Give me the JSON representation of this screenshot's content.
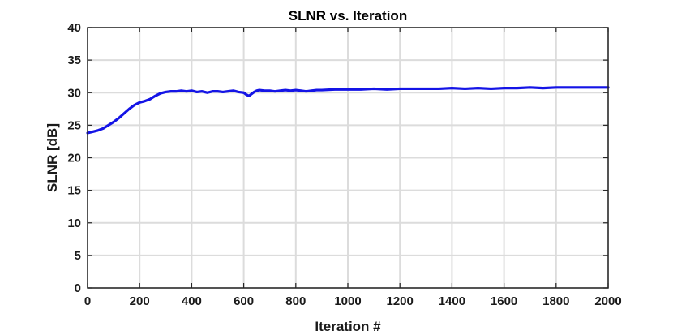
{
  "chart_data": {
    "type": "line",
    "title": "SLNR vs. Iteration",
    "xlabel": "Iteration #",
    "ylabel": "SLNR [dB]",
    "xlim": [
      0,
      2000
    ],
    "ylim": [
      0,
      40
    ],
    "xticks": [
      0,
      200,
      400,
      600,
      800,
      1000,
      1200,
      1400,
      1600,
      1800,
      2000
    ],
    "yticks": [
      0,
      5,
      10,
      15,
      20,
      25,
      30,
      35,
      40
    ],
    "grid": true,
    "colors": {
      "line": "#1414e6",
      "grid": "#dcdcdc",
      "axis": "#262626"
    },
    "series": [
      {
        "x": [
          0,
          20,
          40,
          60,
          80,
          100,
          120,
          140,
          160,
          180,
          200,
          220,
          240,
          260,
          280,
          300,
          320,
          340,
          360,
          380,
          400,
          420,
          440,
          460,
          480,
          500,
          520,
          540,
          560,
          580,
          600,
          610,
          620,
          630,
          640,
          650,
          660,
          680,
          700,
          720,
          740,
          760,
          780,
          800,
          820,
          840,
          860,
          880,
          900,
          950,
          1000,
          1050,
          1100,
          1150,
          1200,
          1250,
          1300,
          1350,
          1400,
          1450,
          1500,
          1550,
          1600,
          1650,
          1700,
          1750,
          1800,
          1850,
          1900,
          1950,
          2000
        ],
        "values": [
          23.8,
          24.0,
          24.2,
          24.5,
          25.0,
          25.5,
          26.1,
          26.8,
          27.5,
          28.1,
          28.5,
          28.7,
          29.0,
          29.5,
          29.9,
          30.1,
          30.2,
          30.2,
          30.3,
          30.2,
          30.3,
          30.1,
          30.2,
          30.0,
          30.2,
          30.2,
          30.1,
          30.2,
          30.3,
          30.1,
          30.0,
          29.7,
          29.5,
          29.8,
          30.1,
          30.3,
          30.4,
          30.3,
          30.3,
          30.2,
          30.3,
          30.4,
          30.3,
          30.4,
          30.3,
          30.2,
          30.3,
          30.4,
          30.4,
          30.5,
          30.5,
          30.5,
          30.6,
          30.5,
          30.6,
          30.6,
          30.6,
          30.6,
          30.7,
          30.6,
          30.7,
          30.6,
          30.7,
          30.7,
          30.8,
          30.7,
          30.8,
          30.8,
          30.8,
          30.8,
          30.8
        ]
      }
    ]
  }
}
